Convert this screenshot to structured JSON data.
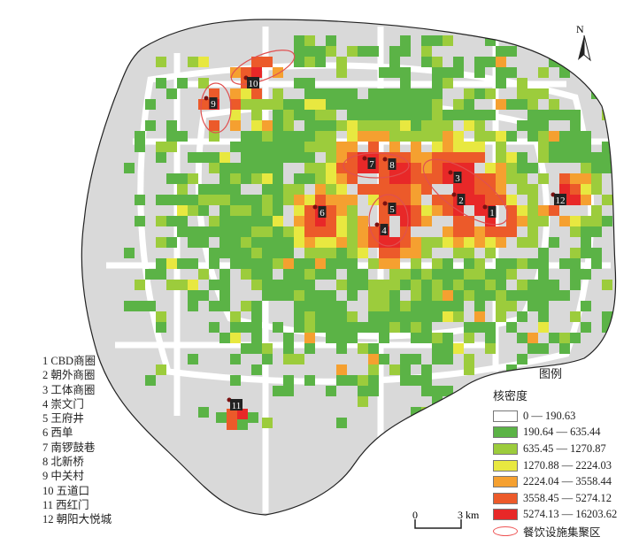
{
  "colors": {
    "background_area": "#d9d9d9",
    "road": "#ffffff",
    "boundary": "#222222",
    "cluster_ellipse": "#e05050",
    "classes": [
      "#ffffff",
      "#5bb346",
      "#9ccc3c",
      "#e8e840",
      "#f5a030",
      "#ec5a2a",
      "#e82828"
    ]
  },
  "north_arrow": {
    "label": "N",
    "icon": "north-arrow-icon"
  },
  "legend": {
    "title": "图例",
    "subtitle": "核密度",
    "classes": [
      {
        "label": "0 — 190.63",
        "color": "#ffffff"
      },
      {
        "label": "190.64 — 635.44",
        "color": "#5bb346"
      },
      {
        "label": "635.45 — 1270.87",
        "color": "#9ccc3c"
      },
      {
        "label": "1270.88 — 2224.03",
        "color": "#e8e840"
      },
      {
        "label": "2224.04 — 3558.44",
        "color": "#f5a030"
      },
      {
        "label": "3558.45 — 5274.12",
        "color": "#ec5a2a"
      },
      {
        "label": "5274.13 — 16203.62",
        "color": "#e82828"
      }
    ],
    "cluster_label": "餐饮设施集聚区"
  },
  "scale_bar": {
    "start": "0",
    "end": "3 km"
  },
  "poi_list": [
    "1 CBD商圈",
    "2 朝外商圈",
    "3 工体商圈",
    "4 崇文门",
    "5 王府井",
    "6 西单",
    "7 南锣鼓巷",
    "8 北新桥",
    "9 中关村",
    "10 五道口",
    "11 西红门",
    "12 朝阳大悦城"
  ],
  "markers": [
    "1",
    "2",
    "3",
    "4",
    "5",
    "6",
    "7",
    "8",
    "9",
    "10",
    "11",
    "12"
  ]
}
